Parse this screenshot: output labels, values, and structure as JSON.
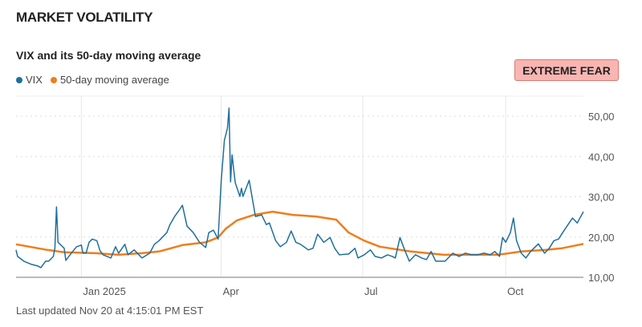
{
  "header": {
    "title": "MARKET VOLATILITY"
  },
  "badge": {
    "label": "EXTREME FEAR",
    "color": "#f8b6b2"
  },
  "footer": {
    "updated": "Last updated Nov 20 at 4:15:01 PM EST"
  },
  "chart_data": {
    "type": "line",
    "title": "VIX and its 50-day moving average",
    "legend_position": "top-left",
    "grid": true,
    "xlim": [
      "2024-11-20",
      "2025-11-20"
    ],
    "ylim": [
      10,
      54
    ],
    "x_ticks": [
      {
        "date": "2025-01-01",
        "label": "Jan 2025"
      },
      {
        "date": "2025-04-01",
        "label": "Apr"
      },
      {
        "date": "2025-07-01",
        "label": "Jul"
      },
      {
        "date": "2025-10-01",
        "label": "Oct"
      }
    ],
    "y_ticks": [
      {
        "value": 10,
        "label": "10,00"
      },
      {
        "value": 20,
        "label": "20,00"
      },
      {
        "value": 30,
        "label": "30,00"
      },
      {
        "value": 40,
        "label": "40,00"
      },
      {
        "value": 50,
        "label": "50,00"
      }
    ],
    "series": [
      {
        "name": "VIX",
        "color": "#1f6f9c",
        "points": [
          [
            "2024-11-20",
            16.8
          ],
          [
            "2024-11-21",
            15.2
          ],
          [
            "2024-11-25",
            14.0
          ],
          [
            "2024-11-30",
            13.2
          ],
          [
            "2024-12-04",
            12.8
          ],
          [
            "2024-12-06",
            12.4
          ],
          [
            "2024-12-09",
            14.0
          ],
          [
            "2024-12-11",
            14.0
          ],
          [
            "2024-12-14",
            15.2
          ],
          [
            "2024-12-15",
            17.2
          ],
          [
            "2024-12-16",
            27.5
          ],
          [
            "2024-12-17",
            18.7
          ],
          [
            "2024-12-21",
            17.2
          ],
          [
            "2024-12-22",
            14.2
          ],
          [
            "2024-12-26",
            16.2
          ],
          [
            "2024-12-29",
            17.6
          ],
          [
            "2025-01-01",
            18.0
          ],
          [
            "2025-01-02",
            16.0
          ],
          [
            "2025-01-04",
            16.0
          ],
          [
            "2025-01-06",
            18.7
          ],
          [
            "2025-01-08",
            19.5
          ],
          [
            "2025-01-11",
            19.1
          ],
          [
            "2025-01-13",
            16.6
          ],
          [
            "2025-01-15",
            15.6
          ],
          [
            "2025-01-20",
            14.8
          ],
          [
            "2025-01-23",
            17.6
          ],
          [
            "2025-01-25",
            16.0
          ],
          [
            "2025-01-29",
            18.2
          ],
          [
            "2025-01-31",
            15.6
          ],
          [
            "2025-02-04",
            16.8
          ],
          [
            "2025-02-09",
            14.8
          ],
          [
            "2025-02-14",
            16.0
          ],
          [
            "2025-02-17",
            18.2
          ],
          [
            "2025-02-20",
            19.1
          ],
          [
            "2025-02-25",
            21.1
          ],
          [
            "2025-02-27",
            23.1
          ],
          [
            "2025-03-02",
            25.1
          ],
          [
            "2025-03-05",
            26.7
          ],
          [
            "2025-03-07",
            27.9
          ],
          [
            "2025-03-10",
            22.7
          ],
          [
            "2025-03-14",
            21.1
          ],
          [
            "2025-03-18",
            18.7
          ],
          [
            "2025-03-22",
            17.4
          ],
          [
            "2025-03-24",
            21.1
          ],
          [
            "2025-03-27",
            21.7
          ],
          [
            "2025-03-30",
            19.5
          ],
          [
            "2025-04-01",
            34.1
          ],
          [
            "2025-04-03",
            44.0
          ],
          [
            "2025-04-05",
            47.0
          ],
          [
            "2025-04-06",
            52.0
          ],
          [
            "2025-04-07",
            33.7
          ],
          [
            "2025-04-08",
            40.4
          ],
          [
            "2025-04-10",
            33.5
          ],
          [
            "2025-04-13",
            30.1
          ],
          [
            "2025-04-14",
            32.1
          ],
          [
            "2025-04-15",
            30.1
          ],
          [
            "2025-04-19",
            34.1
          ],
          [
            "2025-04-23",
            25.1
          ],
          [
            "2025-04-27",
            25.5
          ],
          [
            "2025-04-30",
            23.1
          ],
          [
            "2025-05-02",
            23.5
          ],
          [
            "2025-05-06",
            19.1
          ],
          [
            "2025-05-09",
            17.6
          ],
          [
            "2025-05-13",
            18.7
          ],
          [
            "2025-05-16",
            21.5
          ],
          [
            "2025-05-19",
            18.7
          ],
          [
            "2025-05-22",
            18.2
          ],
          [
            "2025-05-27",
            16.8
          ],
          [
            "2025-05-30",
            17.2
          ],
          [
            "2025-06-02",
            20.7
          ],
          [
            "2025-06-06",
            18.7
          ],
          [
            "2025-06-10",
            19.9
          ],
          [
            "2025-06-13",
            17.2
          ],
          [
            "2025-06-16",
            15.6
          ],
          [
            "2025-06-22",
            15.8
          ],
          [
            "2025-06-26",
            17.2
          ],
          [
            "2025-06-28",
            14.8
          ],
          [
            "2025-07-02",
            15.6
          ],
          [
            "2025-07-06",
            16.8
          ],
          [
            "2025-07-09",
            15.2
          ],
          [
            "2025-07-13",
            14.8
          ],
          [
            "2025-07-17",
            15.6
          ],
          [
            "2025-07-20",
            15.2
          ],
          [
            "2025-07-22",
            14.8
          ],
          [
            "2025-07-25",
            19.9
          ],
          [
            "2025-07-28",
            16.8
          ],
          [
            "2025-07-31",
            14.0
          ],
          [
            "2025-08-04",
            15.6
          ],
          [
            "2025-08-08",
            14.8
          ],
          [
            "2025-08-11",
            14.4
          ],
          [
            "2025-08-14",
            16.4
          ],
          [
            "2025-08-17",
            14.0
          ],
          [
            "2025-08-23",
            14.0
          ],
          [
            "2025-08-28",
            16.0
          ],
          [
            "2025-09-01",
            15.2
          ],
          [
            "2025-09-05",
            16.0
          ],
          [
            "2025-09-09",
            15.6
          ],
          [
            "2025-09-13",
            15.6
          ],
          [
            "2025-09-17",
            16.0
          ],
          [
            "2025-09-21",
            15.6
          ],
          [
            "2025-09-24",
            16.4
          ],
          [
            "2025-09-27",
            15.2
          ],
          [
            "2025-09-29",
            19.9
          ],
          [
            "2025-10-01",
            18.7
          ],
          [
            "2025-10-04",
            21.1
          ],
          [
            "2025-10-06",
            24.7
          ],
          [
            "2025-10-08",
            19.1
          ],
          [
            "2025-10-11",
            16.0
          ],
          [
            "2025-10-14",
            14.8
          ],
          [
            "2025-10-17",
            16.4
          ],
          [
            "2025-10-22",
            18.3
          ],
          [
            "2025-10-26",
            16.0
          ],
          [
            "2025-10-29",
            17.2
          ],
          [
            "2025-11-01",
            19.1
          ],
          [
            "2025-11-04",
            19.5
          ],
          [
            "2025-11-08",
            21.9
          ],
          [
            "2025-11-13",
            24.7
          ],
          [
            "2025-11-16",
            23.5
          ],
          [
            "2025-11-20",
            26.3
          ]
        ]
      },
      {
        "name": "50-day moving average",
        "color": "#f07d1a",
        "points": [
          [
            "2024-11-20",
            18.2
          ],
          [
            "2024-12-10",
            16.8
          ],
          [
            "2024-12-21",
            16.2
          ],
          [
            "2025-01-10",
            16.0
          ],
          [
            "2025-01-25",
            15.6
          ],
          [
            "2025-02-09",
            16.0
          ],
          [
            "2025-02-20",
            16.4
          ],
          [
            "2025-03-07",
            18.0
          ],
          [
            "2025-03-22",
            18.7
          ],
          [
            "2025-03-30",
            19.9
          ],
          [
            "2025-04-04",
            22.1
          ],
          [
            "2025-04-11",
            24.1
          ],
          [
            "2025-04-22",
            25.5
          ],
          [
            "2025-05-04",
            26.3
          ],
          [
            "2025-05-17",
            25.5
          ],
          [
            "2025-06-01",
            25.1
          ],
          [
            "2025-06-14",
            24.3
          ],
          [
            "2025-06-22",
            21.1
          ],
          [
            "2025-07-02",
            19.1
          ],
          [
            "2025-07-12",
            17.6
          ],
          [
            "2025-08-01",
            16.4
          ],
          [
            "2025-08-22",
            15.6
          ],
          [
            "2025-09-11",
            15.6
          ],
          [
            "2025-09-26",
            15.6
          ],
          [
            "2025-10-11",
            16.4
          ],
          [
            "2025-10-27",
            16.8
          ],
          [
            "2025-11-06",
            17.2
          ],
          [
            "2025-11-20",
            18.3
          ]
        ]
      }
    ]
  }
}
